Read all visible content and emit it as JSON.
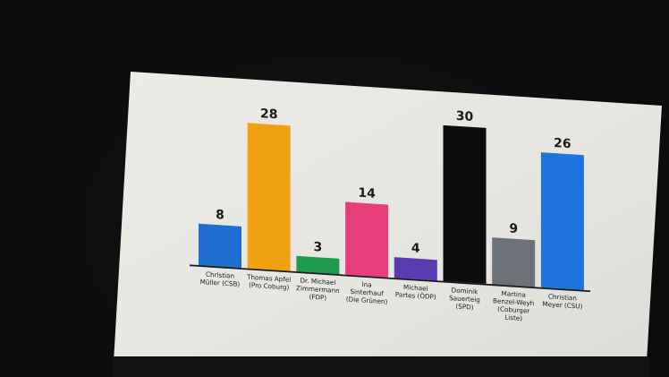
{
  "chart_data": {
    "type": "bar",
    "categories": [
      [
        "Christian",
        "Müller (CSB)"
      ],
      [
        "Thomas Apfel",
        "(Pro Coburg)"
      ],
      [
        "Dr. Michael",
        "Zimmermann",
        "(FDP)"
      ],
      [
        "Ina",
        "Sinterhauf",
        "(Die Grünen)"
      ],
      [
        "Michael",
        "Partes (ÖDP)"
      ],
      [
        "Dominik",
        "Sauerteig",
        "(SPD)"
      ],
      [
        "Martina",
        "Benzel-Weyh",
        "(Coburger",
        "Liste)"
      ],
      [
        "Christian",
        "Meyer (CSU)"
      ]
    ],
    "values": [
      8,
      28,
      3,
      14,
      4,
      30,
      9,
      26
    ],
    "value_labels": [
      "8",
      "28",
      "3",
      "14",
      "4",
      "30",
      "9",
      "26"
    ],
    "colors": [
      "#1f6fd0",
      "#f0a112",
      "#1f9a4a",
      "#e63f7c",
      "#5a3bb0",
      "#0d0d0d",
      "#6d7178",
      "#1f73de"
    ],
    "ylim": [
      0,
      30
    ],
    "grid": false,
    "legend": "none"
  },
  "colors": {
    "page_background": "#0b0b0c",
    "panel_background": "#e7e6e1",
    "axis": "#1a1a1a",
    "text": "#1a1a1a"
  }
}
